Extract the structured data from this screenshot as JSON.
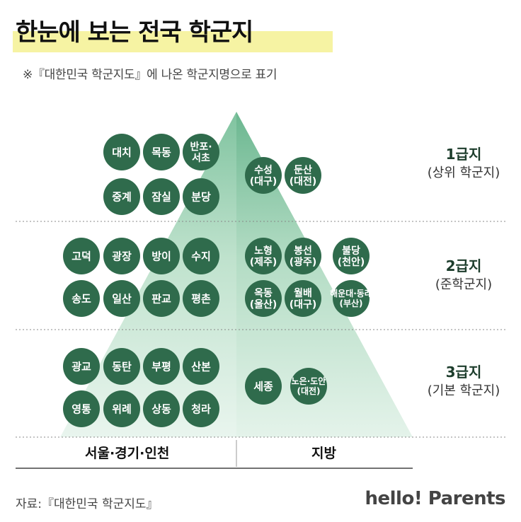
{
  "title": "한눈에 보는 전국 학군지",
  "subtitle": "※『대한민국 학군지도』에 나온 학군지명으로 표기",
  "tiers": [
    {
      "name": "1급지",
      "desc": "(상위 학군지)",
      "seoul": [
        "대치",
        "목동",
        "반포·서초",
        "중계",
        "잠실",
        "분당"
      ],
      "local": [
        "수성(대구)",
        "둔산(대전)"
      ]
    },
    {
      "name": "2급지",
      "desc": "(준학군지)",
      "seoul": [
        "고덕",
        "광장",
        "방이",
        "수지",
        "송도",
        "일산",
        "판교",
        "평촌"
      ],
      "local": [
        "노형(제주)",
        "봉선(광주)",
        "불당(천안)",
        "옥동(울산)",
        "월배(대구)",
        "해운대·동래(부산)"
      ]
    },
    {
      "name": "3급지",
      "desc": "(기본 학군지)",
      "seoul": [
        "광교",
        "동탄",
        "부평",
        "산본",
        "영통",
        "위례",
        "상동",
        "청라"
      ],
      "local": [
        "세종",
        "노은·도안(대전)"
      ]
    }
  ],
  "regions": {
    "left": "서울·경기·인천",
    "right": "지방"
  },
  "source": "자료:『대한민국 학군지도』",
  "brand": "hello! Parents",
  "colors": {
    "badge": "#2f6b4c",
    "pyramid_light": "#cfe8d9",
    "pyramid_mid": "#a9d8bd",
    "highlight": "#f6f3a3"
  }
}
